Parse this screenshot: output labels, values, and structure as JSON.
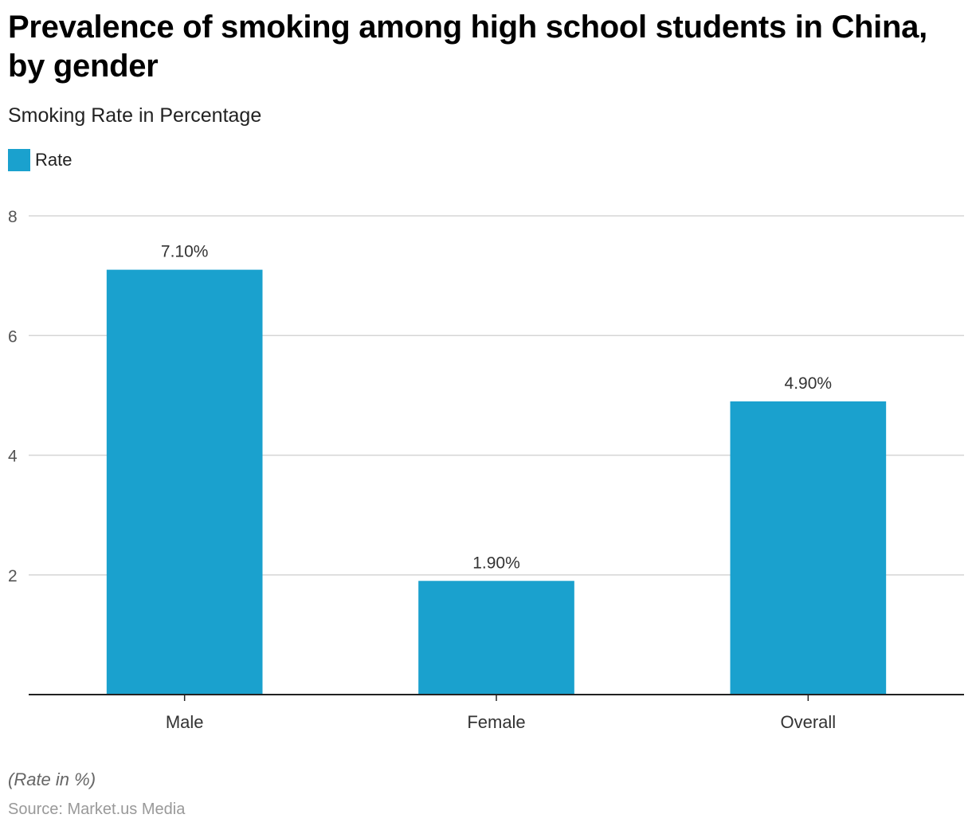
{
  "chart_data": {
    "type": "bar",
    "title": "Prevalence of smoking among high school students in China, by gender",
    "subtitle": "Smoking Rate in Percentage",
    "categories": [
      "Male",
      "Female",
      "Overall"
    ],
    "series": [
      {
        "name": "Rate",
        "values": [
          7.1,
          1.9,
          4.9
        ],
        "labels": [
          "7.10%",
          "1.90%",
          "4.90%"
        ],
        "color": "#1aa1ce"
      }
    ],
    "xlabel": "",
    "ylabel": "",
    "ylim": [
      0,
      8
    ],
    "yticks": [
      2,
      4,
      6,
      8
    ],
    "grid": true,
    "legend": "top-left"
  },
  "footer": {
    "note": "(Rate in %)",
    "source": "Source: Market.us Media"
  }
}
